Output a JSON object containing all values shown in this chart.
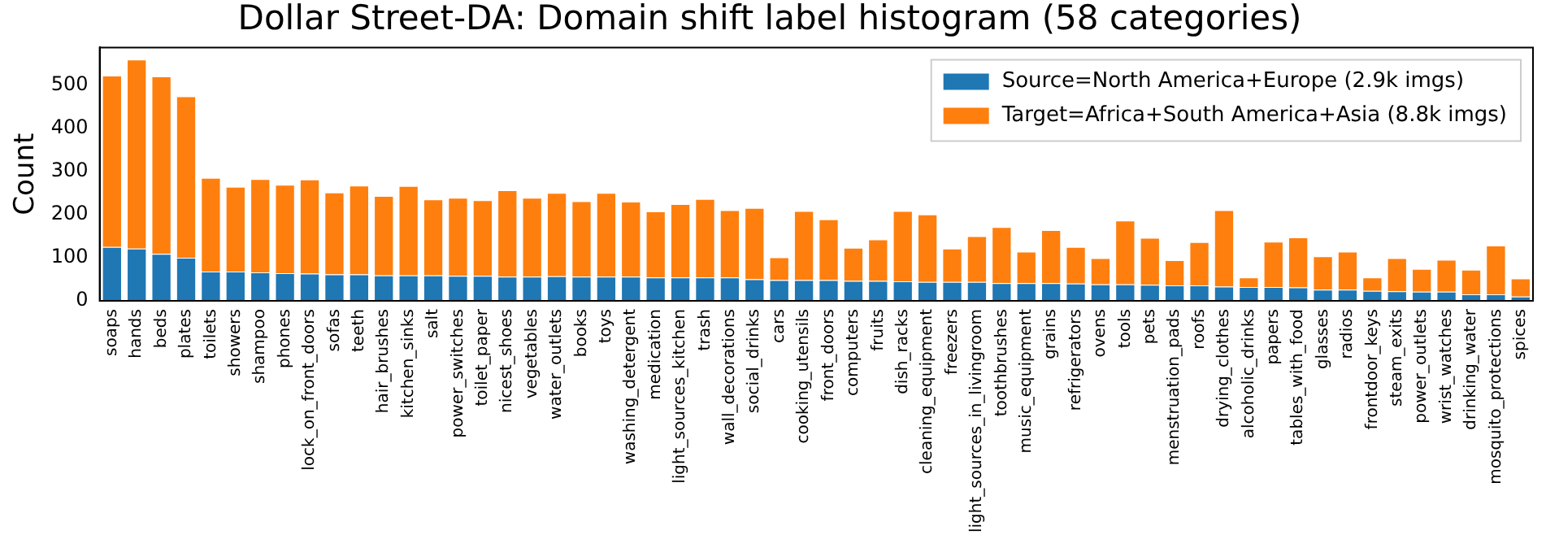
{
  "chart_data": {
    "type": "bar",
    "title": "Dollar Street-DA: Domain shift label histogram (58 categories)",
    "ylabel": "Count",
    "categories": [
      "soaps",
      "hands",
      "beds",
      "plates",
      "toilets",
      "showers",
      "shampoo",
      "phones",
      "lock_on_front_doors",
      "sofas",
      "teeth",
      "hair_brushes",
      "kitchen_sinks",
      "salt",
      "power_switches",
      "toilet_paper",
      "nicest_shoes",
      "vegetables",
      "water_outlets",
      "books",
      "toys",
      "washing_detergent",
      "medication",
      "light_sources_kitchen",
      "trash",
      "wall_decorations",
      "social_drinks",
      "cars",
      "cooking_utensils",
      "front_doors",
      "computers",
      "fruits",
      "dish_racks",
      "cleaning_equipment",
      "freezers",
      "light_sources_in_livingroom",
      "toothbrushes",
      "music_equipment",
      "grains",
      "refrigerators",
      "ovens",
      "tools",
      "pets",
      "menstruation_pads",
      "roofs",
      "drying_clothes",
      "alcoholic_drinks",
      "papers",
      "tables_with_food",
      "glasses",
      "radios",
      "frontdoor_keys",
      "steam_exits",
      "power_outlets",
      "wrist_watches",
      "drinking_water",
      "mosquito_protections",
      "spices"
    ],
    "series": [
      {
        "name": "Source=North America+Europe (2.9k imgs)",
        "color": "#1f77b4",
        "values": [
          125,
          121,
          109,
          100,
          68,
          68,
          66,
          64,
          63,
          61,
          61,
          59,
          59,
          59,
          58,
          58,
          56,
          56,
          57,
          56,
          56,
          56,
          54,
          54,
          54,
          54,
          50,
          48,
          48,
          48,
          46,
          46,
          45,
          44,
          44,
          44,
          41,
          41,
          41,
          40,
          38,
          38,
          37,
          36,
          36,
          33,
          32,
          32,
          31,
          26,
          26,
          23,
          22,
          21,
          21,
          15,
          15,
          10
        ]
      },
      {
        "name": "Target=Africa+South America+Asia (8.8k imgs)",
        "color": "#ff7f0e",
        "values": [
          397,
          438,
          411,
          374,
          217,
          196,
          216,
          205,
          218,
          190,
          206,
          184,
          207,
          176,
          181,
          175,
          200,
          183,
          193,
          175,
          194,
          174,
          153,
          170,
          182,
          156,
          165,
          53,
          160,
          141,
          77,
          96,
          163,
          156,
          77,
          106,
          130,
          73,
          123,
          85,
          61,
          148,
          109,
          58,
          100,
          177,
          22,
          105,
          116,
          77,
          88,
          31,
          77,
          53,
          74,
          57,
          113,
          42
        ]
      }
    ],
    "stacked": true,
    "ylim": [
      0,
      587
    ],
    "yticks": [
      0,
      100,
      200,
      300,
      400,
      500
    ],
    "grid": false,
    "legend": "top right"
  }
}
